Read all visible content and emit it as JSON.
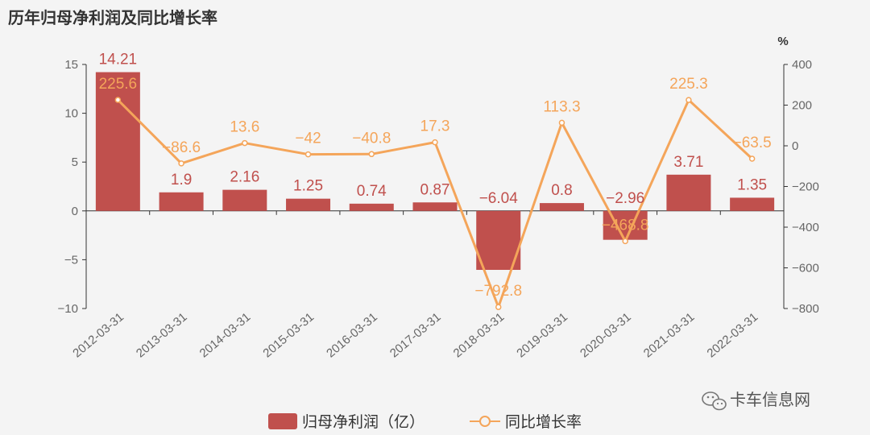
{
  "title": "历年归母净利润及同比增长率",
  "watermark": "卡车信息网",
  "colors": {
    "bar": "#c0504d",
    "line": "#f4a55a",
    "axis": "#333333",
    "text": "#666666",
    "background": "#f4f4f4"
  },
  "chart_data": {
    "type": "bar",
    "title": "历年归母净利润及同比增长率",
    "categories": [
      "2012-03-31",
      "2013-03-31",
      "2014-03-31",
      "2015-03-31",
      "2016-03-31",
      "2017-03-31",
      "2018-03-31",
      "2019-03-31",
      "2020-03-31",
      "2021-03-31",
      "2022-03-31"
    ],
    "series": [
      {
        "name": "归母净利润（亿）",
        "type": "bar",
        "axis": "left",
        "values": [
          14.21,
          1.9,
          2.16,
          1.25,
          0.74,
          0.87,
          -6.04,
          0.8,
          -2.96,
          3.71,
          1.35
        ],
        "labels": [
          "14.21",
          "1.9",
          "2.16",
          "1.25",
          "0.74",
          "0.87",
          "−6.04",
          "0.8",
          "−2.96",
          "3.71",
          "1.35"
        ]
      },
      {
        "name": "同比增长率",
        "type": "line",
        "axis": "right",
        "values": [
          225.6,
          -86.6,
          13.6,
          -42,
          -40.8,
          17.3,
          -792.8,
          113.3,
          -468.8,
          225.3,
          -63.5
        ],
        "labels": [
          "225.6",
          "−86.6",
          "13.6",
          "−42",
          "−40.8",
          "17.3",
          "−792.8",
          "113.3",
          "−468.8",
          "225.3",
          "−63.5"
        ]
      }
    ],
    "y_left": {
      "min": -10,
      "max": 15,
      "ticks": [
        15,
        10,
        5,
        0,
        -5,
        -10
      ],
      "tick_labels": [
        "15",
        "10",
        "5",
        "0",
        "−5",
        "−10"
      ]
    },
    "y_right": {
      "min": -800,
      "max": 400,
      "unit": "%",
      "ticks": [
        400,
        200,
        0,
        -200,
        -400,
        -600,
        -800
      ],
      "tick_labels": [
        "400",
        "200",
        "0",
        "−200",
        "−400",
        "−600",
        "−800"
      ]
    },
    "xlabel": "",
    "ylabel": "",
    "grid": false,
    "legend_position": "bottom-center"
  }
}
